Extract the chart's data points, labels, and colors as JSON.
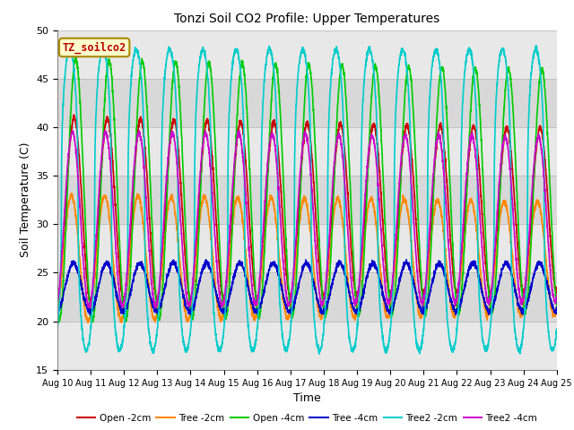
{
  "title": "Tonzi Soil CO2 Profile: Upper Temperatures",
  "xlabel": "Time",
  "ylabel": "Soil Temperature (C)",
  "ylim": [
    15,
    50
  ],
  "xlim_days": [
    0,
    15
  ],
  "x_tick_labels": [
    "Aug 10",
    "Aug 11",
    "Aug 12",
    "Aug 13",
    "Aug 14",
    "Aug 15",
    "Aug 16",
    "Aug 17",
    "Aug 18",
    "Aug 19",
    "Aug 20",
    "Aug 21",
    "Aug 22",
    "Aug 23",
    "Aug 24",
    "Aug 25"
  ],
  "annotation_text": "TZ_soilco2",
  "annotation_color": "#bb0000",
  "annotation_bg": "#ffffcc",
  "annotation_border": "#aa8800",
  "series": [
    {
      "label": "Open -2cm",
      "color": "#cc0000",
      "lw": 1.2,
      "mid": 31.5,
      "amp": 9.5,
      "phase": 0.0,
      "decay": 0.12,
      "trough_sharpness": 1.0
    },
    {
      "label": "Tree -2cm",
      "color": "#ff8800",
      "lw": 1.2,
      "mid": 26.5,
      "amp": 6.5,
      "phase": 0.08,
      "decay": 0.1,
      "trough_sharpness": 1.0
    },
    {
      "label": "Open -4cm",
      "color": "#00cc00",
      "lw": 1.2,
      "mid": 33.5,
      "amp": 13.5,
      "phase": -0.05,
      "decay": 0.08,
      "trough_sharpness": 1.0
    },
    {
      "label": "Tree -4cm",
      "color": "#0000cc",
      "lw": 1.2,
      "mid": 23.5,
      "amp": 2.5,
      "phase": 0.02,
      "decay": 0.0,
      "trough_sharpness": 1.0
    },
    {
      "label": "Tree2 -2cm",
      "color": "#00cccc",
      "lw": 1.2,
      "mid": 32.5,
      "amp": 15.5,
      "phase": -0.12,
      "decay": 0.0,
      "trough_sharpness": 2.5
    },
    {
      "label": "Tree2 -4cm",
      "color": "#cc00cc",
      "lw": 1.2,
      "mid": 30.5,
      "amp": 9.0,
      "phase": 0.05,
      "decay": 0.06,
      "trough_sharpness": 1.0
    }
  ],
  "n_points": 3000,
  "grid_color": "#cccccc",
  "bg_color": "#e0e0e0",
  "plot_bg_light": "#f5f5f5",
  "plot_bg_dark": "#dcdcdc"
}
